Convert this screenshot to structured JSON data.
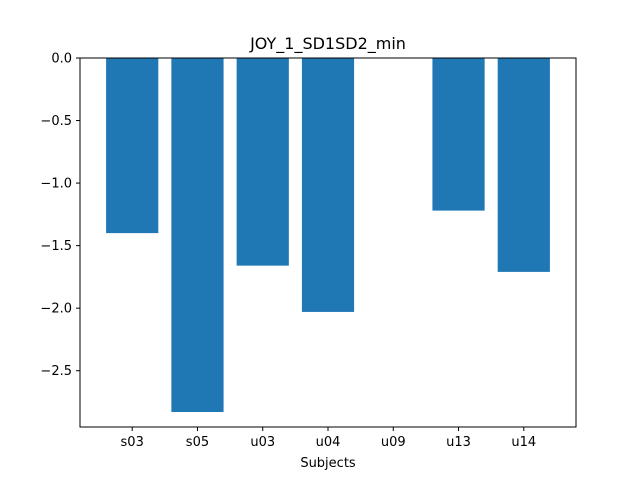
{
  "chart_data": {
    "type": "bar",
    "title": "JOY_1_SD1SD2_min",
    "xlabel": "Subjects",
    "ylabel": "",
    "categories": [
      "s03",
      "s05",
      "u03",
      "u04",
      "u09",
      "u13",
      "u14"
    ],
    "values": [
      -1.4,
      -2.83,
      -1.66,
      -2.03,
      0.0,
      -1.22,
      -1.71
    ],
    "ylim": [
      -2.95,
      0.0
    ],
    "yticks": [
      0.0,
      -0.5,
      -1.0,
      -1.5,
      -2.0,
      -2.5
    ],
    "ytick_labels": [
      "0.0",
      "−0.5",
      "−1.0",
      "−1.5",
      "−2.0",
      "−2.5"
    ],
    "bar_color": "#1f77b4",
    "grid": false,
    "legend": "none"
  }
}
